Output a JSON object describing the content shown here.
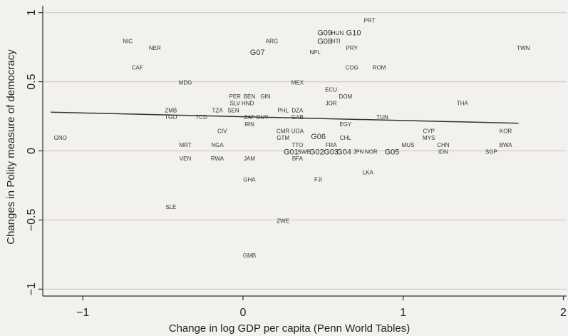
{
  "chart_data": {
    "type": "scatter",
    "xlabel": "Change in log GDP per capita (Penn World Tables)",
    "ylabel": "Changes in Polity measure of democracy",
    "xlim": [
      -1.25,
      2.02
    ],
    "ylim": [
      -1.05,
      1.05
    ],
    "xticks": [
      -1,
      0,
      1,
      2
    ],
    "yticks": [
      -1,
      -0.5,
      0,
      0.5,
      1
    ],
    "xtick_labels": [
      "−1",
      "0",
      "1",
      "2"
    ],
    "ytick_labels": [
      "−1",
      "−0.5",
      "0",
      "0.5",
      "1"
    ],
    "grid": true,
    "fit_line": {
      "x": [
        -1.2,
        1.72
      ],
      "y": [
        0.28,
        0.2
      ]
    },
    "points": [
      {
        "label": "PRT",
        "x": 0.79,
        "y": 0.94
      },
      {
        "label": "G09",
        "x": 0.51,
        "y": 0.85,
        "large": true
      },
      {
        "label": "HUN",
        "x": 0.59,
        "y": 0.85
      },
      {
        "label": "G10",
        "x": 0.69,
        "y": 0.85,
        "large": true
      },
      {
        "label": "G08",
        "x": 0.51,
        "y": 0.79,
        "large": true
      },
      {
        "label": "HTI",
        "x": 0.58,
        "y": 0.79
      },
      {
        "label": "NIC",
        "x": -0.72,
        "y": 0.79
      },
      {
        "label": "NER",
        "x": -0.55,
        "y": 0.74
      },
      {
        "label": "ARG",
        "x": 0.18,
        "y": 0.79
      },
      {
        "label": "PRY",
        "x": 0.68,
        "y": 0.74
      },
      {
        "label": "TWN",
        "x": 1.75,
        "y": 0.74
      },
      {
        "label": "G07",
        "x": 0.09,
        "y": 0.71,
        "large": true
      },
      {
        "label": "NPL",
        "x": 0.45,
        "y": 0.71
      },
      {
        "label": "CAF",
        "x": -0.66,
        "y": 0.6
      },
      {
        "label": "COG",
        "x": 0.68,
        "y": 0.6
      },
      {
        "label": "ROM",
        "x": 0.85,
        "y": 0.6
      },
      {
        "label": "MDG",
        "x": -0.36,
        "y": 0.49
      },
      {
        "label": "MEX",
        "x": 0.34,
        "y": 0.49
      },
      {
        "label": "ECU",
        "x": 0.55,
        "y": 0.44
      },
      {
        "label": "PER",
        "x": -0.05,
        "y": 0.39
      },
      {
        "label": "BEN",
        "x": 0.04,
        "y": 0.39
      },
      {
        "label": "GIN",
        "x": 0.14,
        "y": 0.39
      },
      {
        "label": "DOM",
        "x": 0.64,
        "y": 0.39
      },
      {
        "label": "SLV",
        "x": -0.05,
        "y": 0.34
      },
      {
        "label": "HND",
        "x": 0.03,
        "y": 0.34
      },
      {
        "label": "JOR",
        "x": 0.55,
        "y": 0.34
      },
      {
        "label": "THA",
        "x": 1.37,
        "y": 0.34
      },
      {
        "label": "PHL",
        "x": 0.25,
        "y": 0.29
      },
      {
        "label": "DZA",
        "x": 0.34,
        "y": 0.29
      },
      {
        "label": "ZMB",
        "x": -0.45,
        "y": 0.29
      },
      {
        "label": "TZA",
        "x": -0.16,
        "y": 0.29
      },
      {
        "label": "SEN",
        "x": -0.06,
        "y": 0.29
      },
      {
        "label": "TGO",
        "x": -0.45,
        "y": 0.24
      },
      {
        "label": "TCD",
        "x": -0.26,
        "y": 0.24
      },
      {
        "label": "ZAF",
        "x": 0.04,
        "y": 0.24
      },
      {
        "label": "GUY",
        "x": 0.12,
        "y": 0.24
      },
      {
        "label": "GAB",
        "x": 0.34,
        "y": 0.24
      },
      {
        "label": "TUN",
        "x": 0.87,
        "y": 0.24
      },
      {
        "label": "IRN",
        "x": 0.04,
        "y": 0.19
      },
      {
        "label": "EGY",
        "x": 0.64,
        "y": 0.19
      },
      {
        "label": "CIV",
        "x": -0.13,
        "y": 0.14
      },
      {
        "label": "CMR",
        "x": 0.25,
        "y": 0.14
      },
      {
        "label": "UGA",
        "x": 0.34,
        "y": 0.14
      },
      {
        "label": "CYP",
        "x": 1.16,
        "y": 0.14
      },
      {
        "label": "KOR",
        "x": 1.64,
        "y": 0.14
      },
      {
        "label": "GNO",
        "x": -1.14,
        "y": 0.09
      },
      {
        "label": "GTM",
        "x": 0.25,
        "y": 0.09
      },
      {
        "label": "G06",
        "x": 0.47,
        "y": 0.1,
        "large": true
      },
      {
        "label": "CHL",
        "x": 0.64,
        "y": 0.09
      },
      {
        "label": "MYS",
        "x": 1.16,
        "y": 0.09
      },
      {
        "label": "MRT",
        "x": -0.36,
        "y": 0.04
      },
      {
        "label": "NGA",
        "x": -0.16,
        "y": 0.04
      },
      {
        "label": "TTO",
        "x": 0.34,
        "y": 0.04
      },
      {
        "label": "FRA",
        "x": 0.55,
        "y": 0.04
      },
      {
        "label": "MUS",
        "x": 1.03,
        "y": 0.04
      },
      {
        "label": "CHN",
        "x": 1.25,
        "y": 0.04
      },
      {
        "label": "BWA",
        "x": 1.64,
        "y": 0.04
      },
      {
        "label": "G01",
        "x": 0.3,
        "y": -0.01,
        "large": true
      },
      {
        "label": "SWE",
        "x": 0.38,
        "y": -0.01
      },
      {
        "label": "G02",
        "x": 0.46,
        "y": -0.01,
        "large": true
      },
      {
        "label": "G03",
        "x": 0.55,
        "y": -0.01,
        "large": true
      },
      {
        "label": "G04",
        "x": 0.63,
        "y": -0.01,
        "large": true
      },
      {
        "label": "JPN",
        "x": 0.72,
        "y": -0.01
      },
      {
        "label": "NOR",
        "x": 0.8,
        "y": -0.01
      },
      {
        "label": "G05",
        "x": 0.93,
        "y": -0.01,
        "large": true
      },
      {
        "label": "IDN",
        "x": 1.25,
        "y": -0.01
      },
      {
        "label": "SGP",
        "x": 1.55,
        "y": -0.01
      },
      {
        "label": "VEN",
        "x": -0.36,
        "y": -0.06
      },
      {
        "label": "RWA",
        "x": -0.16,
        "y": -0.06
      },
      {
        "label": "JAM",
        "x": 0.04,
        "y": -0.06
      },
      {
        "label": "BFA",
        "x": 0.34,
        "y": -0.06
      },
      {
        "label": "LKA",
        "x": 0.78,
        "y": -0.16
      },
      {
        "label": "GHA",
        "x": 0.04,
        "y": -0.21
      },
      {
        "label": "FJI",
        "x": 0.47,
        "y": -0.21
      },
      {
        "label": "SLE",
        "x": -0.45,
        "y": -0.41
      },
      {
        "label": "ZWE",
        "x": 0.25,
        "y": -0.51
      },
      {
        "label": "GMB",
        "x": 0.04,
        "y": -0.76
      }
    ]
  }
}
